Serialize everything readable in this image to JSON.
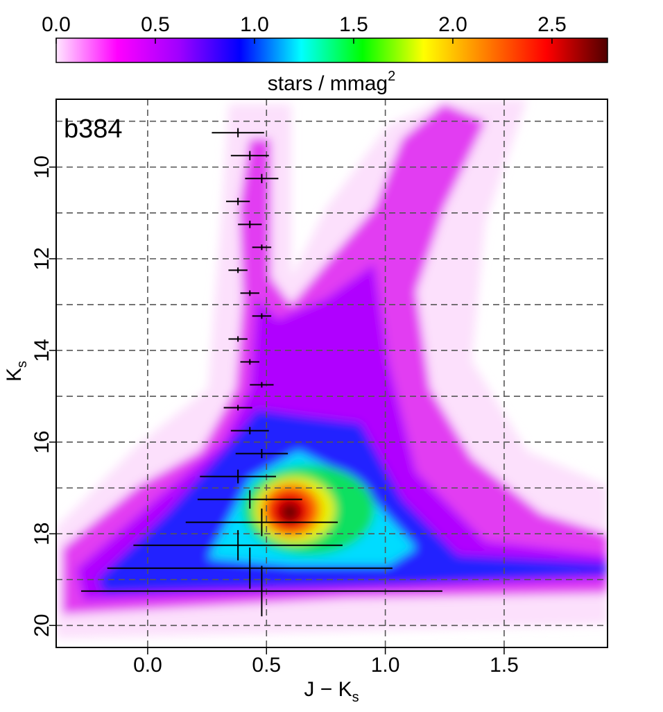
{
  "chart_data": {
    "type": "hess",
    "panel_label": "b384",
    "xlabel": {
      "text": "J − K",
      "sub": "s"
    },
    "ylabel": {
      "text": "K",
      "sub": "s"
    },
    "xlim": [
      -0.385,
      1.935
    ],
    "ylim": [
      20.48,
      8.52
    ],
    "xticks": [
      {
        "value": 0,
        "label": "0.0"
      },
      {
        "value": 0.5,
        "label": "0.5"
      },
      {
        "value": 1,
        "label": "1.0"
      },
      {
        "value": 1.5,
        "label": "1.5"
      }
    ],
    "yticks": [
      10,
      12,
      14,
      16,
      18,
      20
    ],
    "ygrid": [
      9,
      10,
      11,
      12,
      13,
      14,
      15,
      16,
      17,
      18,
      19,
      20
    ],
    "grid": true,
    "colorbar": {
      "label": {
        "text": "stars / mmag",
        "sup": "2"
      },
      "lim": [
        0,
        2.78
      ],
      "ticks": [
        {
          "value": 0,
          "label": "0.0"
        },
        {
          "value": 0.5,
          "label": "0.5"
        },
        {
          "value": 1,
          "label": "1.0"
        },
        {
          "value": 1.5,
          "label": "1.5"
        },
        {
          "value": 2,
          "label": "2.0"
        },
        {
          "value": 2.5,
          "label": "2.5"
        }
      ],
      "colormap": [
        "#ffe6ff",
        "#ff00ff",
        "#a000ff",
        "#0000ff",
        "#00ffff",
        "#00ff00",
        "#ffff00",
        "#ff8000",
        "#ff0000",
        "#500000"
      ]
    },
    "errorbars": {
      "color": "#000000",
      "x": [
        0.38,
        0.43,
        0.48,
        0.38,
        0.43,
        0.48,
        0.38,
        0.43,
        0.48,
        0.38,
        0.43,
        0.48,
        0.38,
        0.43,
        0.48,
        0.38,
        0.43,
        0.48,
        0.38,
        0.43,
        0.48
      ],
      "y": [
        9.25,
        9.75,
        10.25,
        10.75,
        11.25,
        11.75,
        12.25,
        12.75,
        13.25,
        13.75,
        14.25,
        14.75,
        15.25,
        15.75,
        16.25,
        16.75,
        17.25,
        17.75,
        18.25,
        18.75,
        19.25
      ],
      "xerr": [
        0.11,
        0.08,
        0.07,
        0.05,
        0.05,
        0.04,
        0.04,
        0.04,
        0.04,
        0.04,
        0.04,
        0.05,
        0.06,
        0.08,
        0.11,
        0.16,
        0.22,
        0.32,
        0.44,
        0.6,
        0.76
      ],
      "yerr": [
        0.1,
        0.1,
        0.1,
        0.08,
        0.08,
        0.06,
        0.06,
        0.06,
        0.06,
        0.06,
        0.06,
        0.06,
        0.06,
        0.08,
        0.1,
        0.15,
        0.2,
        0.3,
        0.33,
        0.45,
        0.55
      ]
    }
  }
}
